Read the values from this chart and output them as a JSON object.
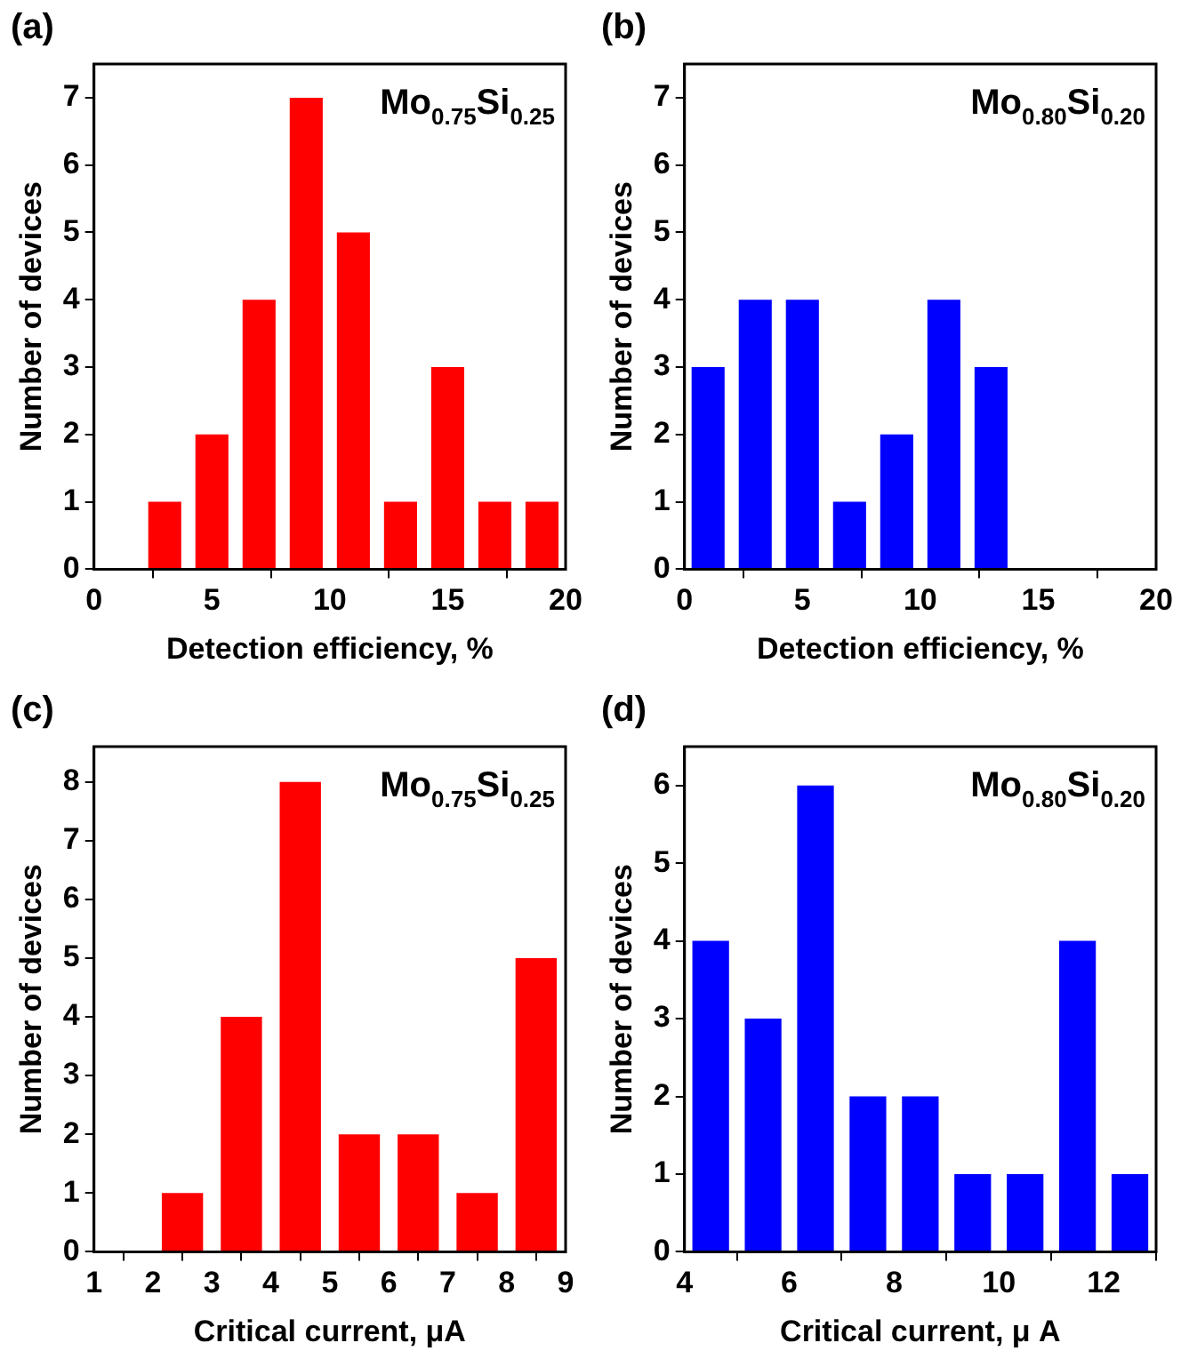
{
  "chart_data": [
    {
      "type": "bar",
      "title": "(a)",
      "xlabel": "Detection efficiency, %",
      "ylabel": "Number of devices",
      "x": [
        3,
        5,
        7,
        9,
        11,
        13,
        15,
        17,
        19
      ],
      "values": [
        1,
        2,
        4,
        7,
        5,
        1,
        3,
        1,
        1
      ],
      "color": "#ff0000",
      "xlim": [
        0,
        20
      ],
      "xticks": [
        0,
        5,
        10,
        15,
        20
      ],
      "ylim": [
        0,
        7.5
      ],
      "yticks": [
        0,
        1,
        2,
        3,
        4,
        5,
        6,
        7
      ],
      "grid": false,
      "annotations": [
        "Mo$_{0.75}$Si$_{0.25}$"
      ]
    },
    {
      "type": "bar",
      "title": "(b)",
      "xlabel": "Detection efficiency, %",
      "ylabel": "Number of devices",
      "x": [
        1,
        3,
        5,
        7,
        9,
        11,
        13
      ],
      "values": [
        3,
        4,
        4,
        1,
        2,
        4,
        3
      ],
      "color": "#0000ff",
      "xlim": [
        0,
        20
      ],
      "xticks": [
        0,
        5,
        10,
        15,
        20
      ],
      "ylim": [
        0,
        7.5
      ],
      "yticks": [
        0,
        1,
        2,
        3,
        4,
        5,
        6,
        7
      ],
      "grid": false,
      "annotations": [
        "Mo$_{0.80}$Si$_{0.20}$"
      ]
    },
    {
      "type": "bar",
      "title": "(c)",
      "xlabel": "Critical current, μA",
      "ylabel": "Number of devices",
      "x": [
        2.5,
        3.5,
        4.5,
        5.5,
        6.5,
        7.5,
        8.5
      ],
      "values": [
        1,
        4,
        8,
        2,
        2,
        1,
        5
      ],
      "color": "#ff0000",
      "xlim": [
        1,
        9
      ],
      "xticks": [
        1,
        2,
        3,
        4,
        5,
        6,
        7,
        8,
        9
      ],
      "ylim": [
        0,
        8.6
      ],
      "yticks": [
        0,
        1,
        2,
        3,
        4,
        5,
        6,
        7,
        8
      ],
      "grid": false,
      "annotations": [
        "Mo$_{0.75}$Si$_{0.25}$"
      ]
    },
    {
      "type": "bar",
      "title": "(d)",
      "xlabel": "Critical current, μ A",
      "ylabel": "Number of devices",
      "x": [
        4.5,
        5.5,
        6.5,
        7.5,
        8.5,
        9.5,
        10.5,
        11.5,
        12.5
      ],
      "values": [
        4,
        3,
        6,
        2,
        2,
        1,
        1,
        4,
        1
      ],
      "color": "#0000ff",
      "xlim": [
        4,
        13
      ],
      "xticks": [
        4,
        6,
        8,
        10,
        12
      ],
      "ylim": [
        0,
        6.5
      ],
      "yticks": [
        0,
        1,
        2,
        3,
        4,
        5,
        6
      ],
      "grid": false,
      "annotations": [
        "Mo$_{0.80}$Si$_{0.20}$"
      ]
    }
  ]
}
